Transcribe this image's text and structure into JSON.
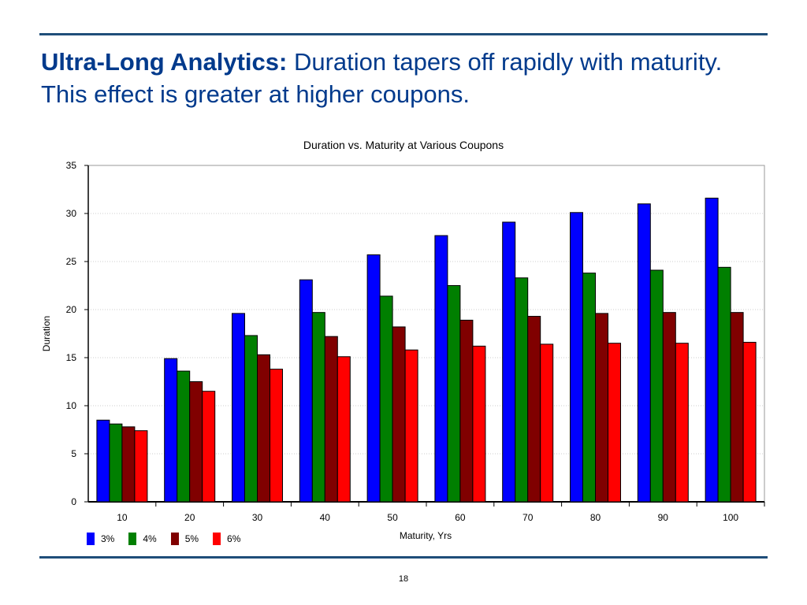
{
  "slide": {
    "title_bold": "Ultra-Long Analytics:",
    "title_rest": " Duration tapers off rapidly with maturity. This effect is greater at higher coupons.",
    "page_number": "18"
  },
  "chart_data": {
    "type": "bar",
    "title": "Duration vs. Maturity at Various Coupons",
    "xlabel": "Maturity, Yrs",
    "ylabel": "Duration",
    "categories": [
      "10",
      "20",
      "30",
      "40",
      "50",
      "60",
      "70",
      "80",
      "90",
      "100"
    ],
    "ylim": [
      0,
      35
    ],
    "yticks": [
      0,
      5,
      10,
      15,
      20,
      25,
      30,
      35
    ],
    "grid": true,
    "legend_position": "bottom-left",
    "series": [
      {
        "name": "3%",
        "color": "#0000ff",
        "values": [
          8.5,
          14.9,
          19.6,
          23.1,
          25.7,
          27.7,
          29.1,
          30.1,
          31.0,
          31.6
        ]
      },
      {
        "name": "4%",
        "color": "#007f00",
        "values": [
          8.1,
          13.6,
          17.3,
          19.7,
          21.4,
          22.5,
          23.3,
          23.8,
          24.1,
          24.4
        ]
      },
      {
        "name": "5%",
        "color": "#800000",
        "values": [
          7.8,
          12.5,
          15.3,
          17.2,
          18.2,
          18.9,
          19.3,
          19.6,
          19.7,
          19.7
        ]
      },
      {
        "name": "6%",
        "color": "#ff0000",
        "values": [
          7.4,
          11.5,
          13.8,
          15.1,
          15.8,
          16.2,
          16.4,
          16.5,
          16.5,
          16.6
        ]
      }
    ]
  }
}
